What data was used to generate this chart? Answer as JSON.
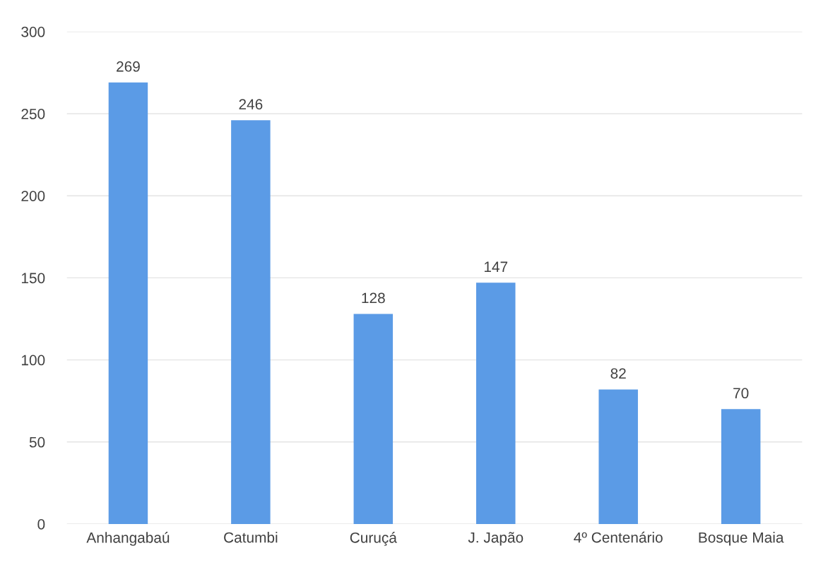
{
  "chart_data": {
    "type": "bar",
    "categories": [
      "Anhangabaú",
      "Catumbi",
      "Curuçá",
      "J. Japão",
      "4º Centenário",
      "Bosque Maia"
    ],
    "values": [
      269,
      246,
      128,
      147,
      82,
      70
    ],
    "color": "#5b9be6",
    "ylim": [
      0,
      300
    ],
    "yticks": [
      0,
      50,
      100,
      150,
      200,
      250,
      300
    ],
    "grid": "y",
    "data_labels": true,
    "legend": false
  }
}
